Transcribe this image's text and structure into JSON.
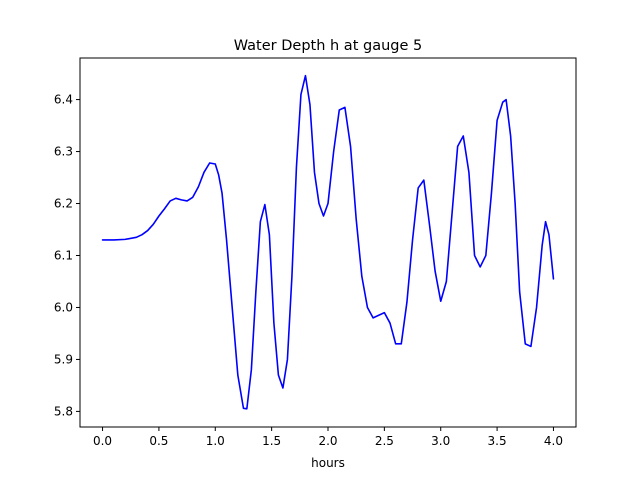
{
  "chart_data": {
    "type": "line",
    "title": "Water Depth h at gauge 5",
    "xlabel": "hours",
    "ylabel": "",
    "xlim": [
      -0.2,
      4.2
    ],
    "ylim": [
      5.77,
      6.48
    ],
    "xticks": [
      0.0,
      0.5,
      1.0,
      1.5,
      2.0,
      2.5,
      3.0,
      3.5,
      4.0
    ],
    "xtick_labels": [
      "0.0",
      "0.5",
      "1.0",
      "1.5",
      "2.0",
      "2.5",
      "3.0",
      "3.5",
      "4.0"
    ],
    "yticks": [
      5.8,
      5.9,
      6.0,
      6.1,
      6.2,
      6.3,
      6.4
    ],
    "ytick_labels": [
      "5.8",
      "5.9",
      "6.0",
      "6.1",
      "6.2",
      "6.3",
      "6.4"
    ],
    "grid": false,
    "series": [
      {
        "color": "#0000ff",
        "x": [
          0.0,
          0.1,
          0.2,
          0.3,
          0.35,
          0.4,
          0.45,
          0.5,
          0.55,
          0.6,
          0.65,
          0.7,
          0.75,
          0.8,
          0.85,
          0.9,
          0.95,
          1.0,
          1.03,
          1.06,
          1.1,
          1.15,
          1.2,
          1.25,
          1.28,
          1.32,
          1.36,
          1.4,
          1.44,
          1.48,
          1.52,
          1.56,
          1.6,
          1.64,
          1.68,
          1.72,
          1.76,
          1.8,
          1.84,
          1.88,
          1.92,
          1.96,
          2.0,
          2.05,
          2.1,
          2.15,
          2.2,
          2.25,
          2.3,
          2.35,
          2.4,
          2.45,
          2.5,
          2.55,
          2.6,
          2.65,
          2.7,
          2.75,
          2.8,
          2.85,
          2.9,
          2.95,
          3.0,
          3.05,
          3.1,
          3.15,
          3.2,
          3.25,
          3.3,
          3.35,
          3.4,
          3.45,
          3.5,
          3.55,
          3.58,
          3.62,
          3.66,
          3.7,
          3.75,
          3.8,
          3.85,
          3.9,
          3.93,
          3.96,
          4.0
        ],
        "y": [
          6.13,
          6.13,
          6.131,
          6.135,
          6.14,
          6.148,
          6.16,
          6.176,
          6.19,
          6.205,
          6.21,
          6.207,
          6.205,
          6.212,
          6.232,
          6.26,
          6.278,
          6.276,
          6.255,
          6.22,
          6.13,
          6.0,
          5.87,
          5.806,
          5.805,
          5.88,
          6.03,
          6.165,
          6.198,
          6.14,
          5.97,
          5.87,
          5.845,
          5.9,
          6.06,
          6.27,
          6.41,
          6.446,
          6.39,
          6.26,
          6.2,
          6.176,
          6.2,
          6.3,
          6.38,
          6.385,
          6.31,
          6.17,
          6.06,
          6.0,
          5.98,
          5.985,
          5.99,
          5.97,
          5.93,
          5.93,
          6.01,
          6.13,
          6.23,
          6.245,
          6.16,
          6.07,
          6.012,
          6.05,
          6.18,
          6.31,
          6.33,
          6.26,
          6.1,
          6.078,
          6.1,
          6.22,
          6.36,
          6.395,
          6.4,
          6.33,
          6.2,
          6.03,
          5.93,
          5.925,
          6.0,
          6.12,
          6.165,
          6.14,
          6.055
        ]
      }
    ]
  }
}
